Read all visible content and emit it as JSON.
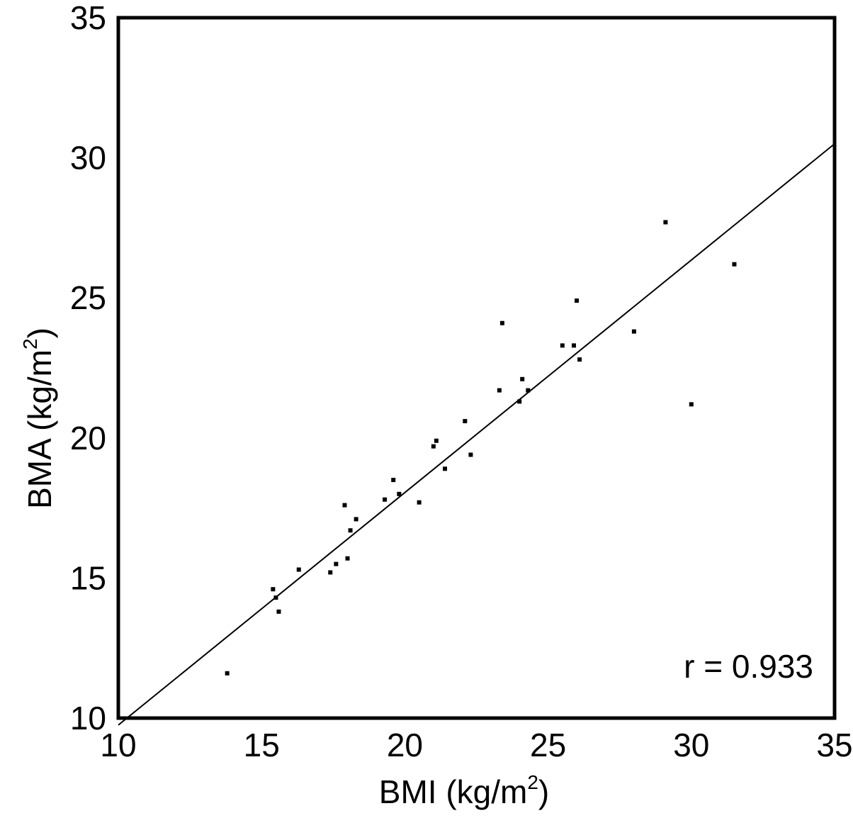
{
  "chart_data": {
    "type": "scatter",
    "xlabel": "BMI (kg/m",
    "xlabel_sup": "2",
    "xlabel_end": ")",
    "ylabel": "BMA (kg/m",
    "ylabel_sup": "2",
    "ylabel_end": ")",
    "xlim": [
      10,
      35
    ],
    "ylim": [
      10,
      35
    ],
    "xticks": [
      10,
      15,
      20,
      25,
      30,
      35
    ],
    "yticks": [
      10,
      15,
      20,
      25,
      30,
      35
    ],
    "grid": false,
    "legend": "none",
    "annotation": "r = 0.933",
    "annotation_position": "bottom-right",
    "fit_line": {
      "x": [
        10,
        35
      ],
      "y": [
        9.75,
        30.5
      ]
    },
    "points": [
      {
        "x": 13.8,
        "y": 11.6
      },
      {
        "x": 15.4,
        "y": 14.6
      },
      {
        "x": 15.5,
        "y": 14.3
      },
      {
        "x": 15.6,
        "y": 13.8
      },
      {
        "x": 16.3,
        "y": 15.3
      },
      {
        "x": 17.4,
        "y": 15.2
      },
      {
        "x": 17.6,
        "y": 15.5
      },
      {
        "x": 17.9,
        "y": 17.6
      },
      {
        "x": 18.0,
        "y": 15.7
      },
      {
        "x": 18.1,
        "y": 16.7
      },
      {
        "x": 18.3,
        "y": 17.1
      },
      {
        "x": 19.3,
        "y": 17.8
      },
      {
        "x": 19.6,
        "y": 18.5
      },
      {
        "x": 19.8,
        "y": 18.0
      },
      {
        "x": 20.5,
        "y": 17.7
      },
      {
        "x": 21.0,
        "y": 19.7
      },
      {
        "x": 21.1,
        "y": 19.9
      },
      {
        "x": 21.4,
        "y": 18.9
      },
      {
        "x": 22.1,
        "y": 20.6
      },
      {
        "x": 22.3,
        "y": 19.4
      },
      {
        "x": 23.3,
        "y": 21.7
      },
      {
        "x": 23.4,
        "y": 24.1
      },
      {
        "x": 24.0,
        "y": 21.3
      },
      {
        "x": 24.1,
        "y": 22.1
      },
      {
        "x": 24.3,
        "y": 21.7
      },
      {
        "x": 25.5,
        "y": 23.3
      },
      {
        "x": 25.9,
        "y": 23.3
      },
      {
        "x": 26.0,
        "y": 24.9
      },
      {
        "x": 26.1,
        "y": 22.8
      },
      {
        "x": 28.0,
        "y": 23.8
      },
      {
        "x": 29.1,
        "y": 27.7
      },
      {
        "x": 30.0,
        "y": 21.2
      },
      {
        "x": 31.5,
        "y": 26.2
      }
    ]
  }
}
